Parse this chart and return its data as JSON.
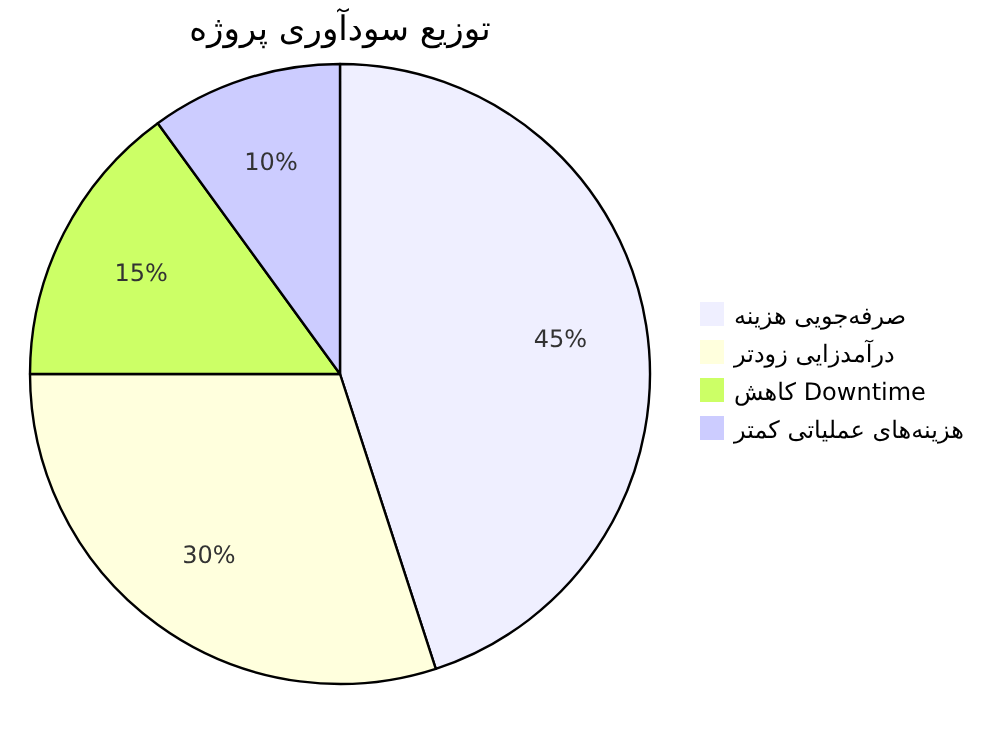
{
  "chart_data": {
    "type": "pie",
    "title": "توزیع سودآوری پروژه",
    "categories": [
      "صرفه‌جویی هزینه",
      "درآمدزایی زودتر",
      "کاهش Downtime",
      "هزینه‌های عملیاتی کمتر"
    ],
    "values": [
      45,
      30,
      15,
      10
    ],
    "colors": [
      "#efefff",
      "#ffffdd",
      "#ccff66",
      "#ccccff"
    ],
    "value_labels": [
      "45%",
      "30%",
      "15%",
      "10%"
    ],
    "legend": "right"
  }
}
